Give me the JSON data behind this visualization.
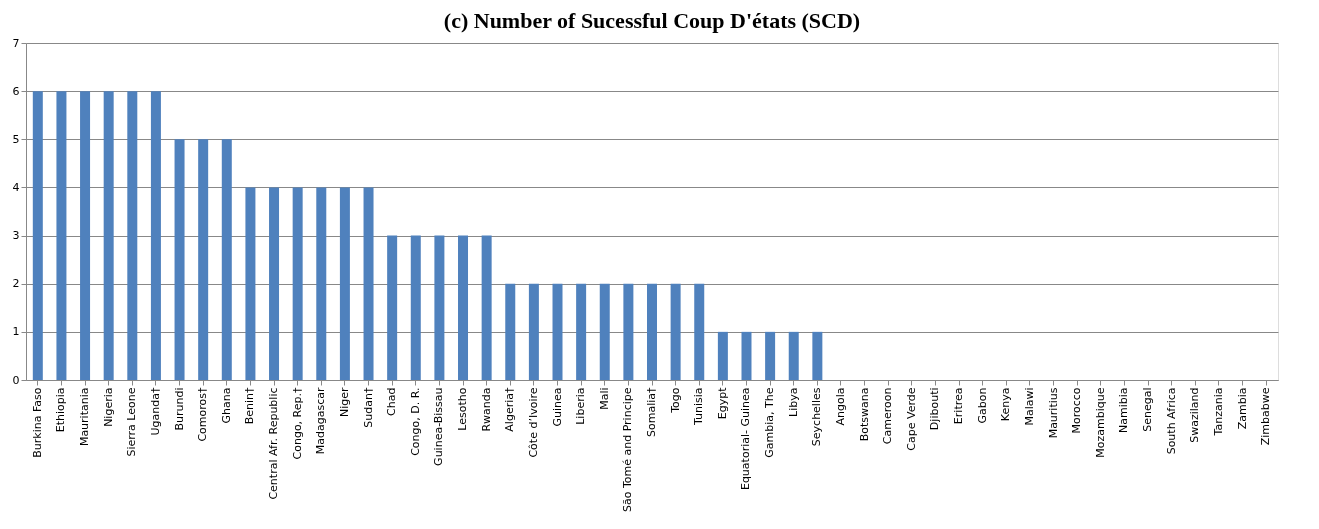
{
  "chart_data": {
    "type": "bar",
    "title": "(c)  Number of Sucessful Coup D'états (SCD)",
    "categories": [
      "Burkina Faso",
      "Ethiopia",
      "Mauritania",
      "Nigeria",
      "Sierra Leone",
      "Uganda†",
      "Burundi",
      "Comoros†",
      "Ghana",
      "Benin†",
      "Central Afr. Republic",
      "Congo, Rep.†",
      "Madagascar",
      "Niger",
      "Sudan†",
      "Chad",
      "Congo, D. R.",
      "Guinea-Bissau",
      "Lesotho",
      "Rwanda",
      "Algeria†",
      "Côte d’Ivoire",
      "Guinea",
      "Liberia",
      "Mali",
      "São Tomé and Principe",
      "Somalia†",
      "Togo",
      "Tunisia",
      "Egypt",
      "Equatorial- Guinea",
      "Gambia, The",
      "Libya",
      "Seychelles",
      "Angola",
      "Botswana",
      "Cameroon",
      "Cape Verde",
      "Djibouti",
      "Eritrea",
      "Gabon",
      "Kenya",
      "Malawi",
      "Mauritius",
      "Morocco",
      "Mozambique",
      "Namibia",
      "Senegal",
      "South Africa",
      "Swaziland",
      "Tanzania",
      "Zambia",
      "Zimbabwe"
    ],
    "values": [
      6,
      6,
      6,
      6,
      6,
      6,
      5,
      5,
      5,
      4,
      4,
      4,
      4,
      4,
      4,
      3,
      3,
      3,
      3,
      3,
      2,
      2,
      2,
      2,
      2,
      2,
      2,
      2,
      2,
      1,
      1,
      1,
      1,
      1,
      0,
      0,
      0,
      0,
      0,
      0,
      0,
      0,
      0,
      0,
      0,
      0,
      0,
      0,
      0,
      0,
      0,
      0,
      0
    ],
    "color": "#4f81bd",
    "ylim": [
      0,
      7
    ],
    "yticks": [
      0,
      1,
      2,
      3,
      4,
      5,
      6,
      7
    ],
    "grid": "y"
  }
}
